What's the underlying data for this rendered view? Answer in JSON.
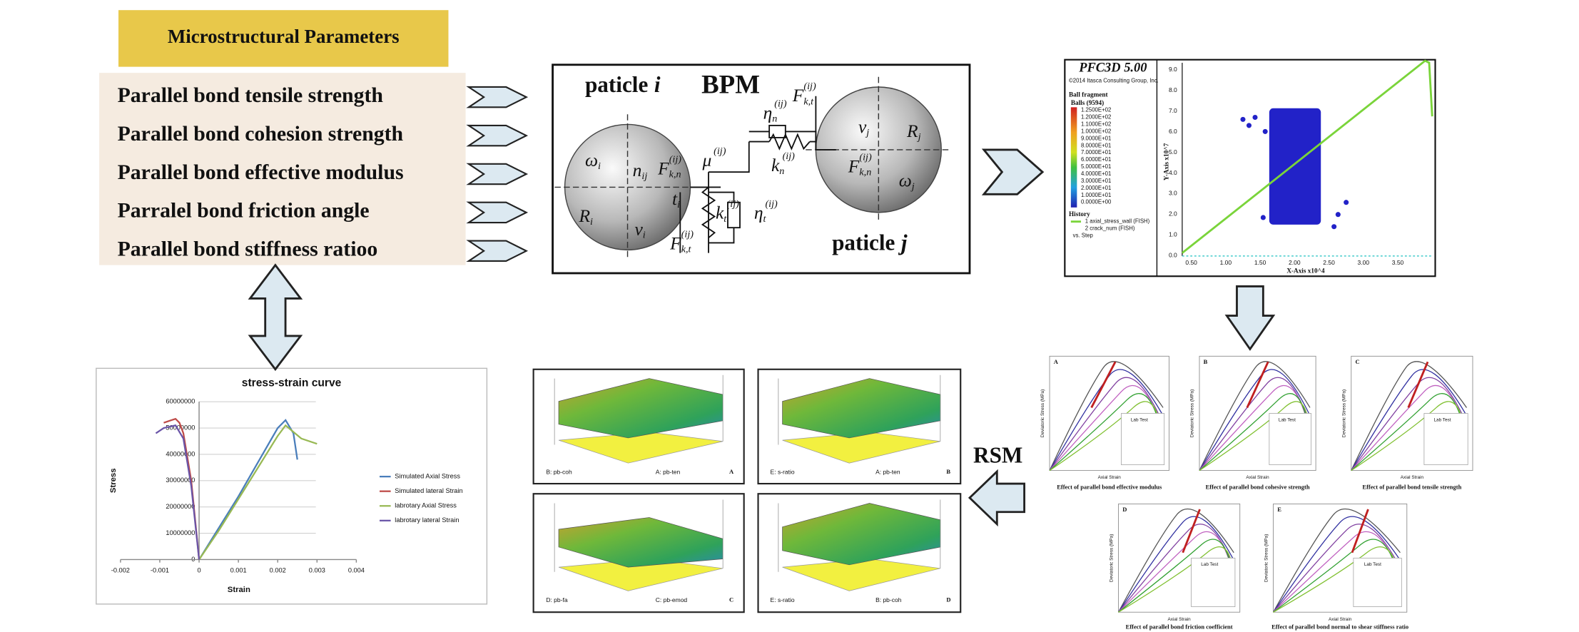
{
  "header": {
    "title": "Microstructural Parameters"
  },
  "parameters": [
    "Parallel bond tensile strength",
    "Parallel bond cohesion strength",
    "Parallel bond effective modulus",
    "Parralel bond friction angle",
    "Parallel bond stiffness ratioo"
  ],
  "bpm": {
    "title": "BPM",
    "particle_i": {
      "label": "paticle",
      "index": "i"
    },
    "particle_j": {
      "label": "paticle",
      "index": "j"
    },
    "symbols": [
      {
        "base": "ω",
        "sub": "i"
      },
      {
        "base": "n",
        "sub": "ij"
      },
      {
        "base": "F",
        "sub": "k,n",
        "sup": "(ij)"
      },
      {
        "base": "t",
        "sub": "i"
      },
      {
        "base": "R",
        "sub": "i"
      },
      {
        "base": "v",
        "sub": "i"
      },
      {
        "base": "F",
        "sub": "k,t",
        "sup": "(ij)"
      },
      {
        "base": "μ",
        "sup": "(ij)"
      },
      {
        "base": "k",
        "sub": "t",
        "sup": "(ij)"
      },
      {
        "base": "η",
        "sub": "t",
        "sup": "(ij)"
      },
      {
        "base": "η",
        "sub": "n",
        "sup": "(ij)"
      },
      {
        "base": "k",
        "sub": "n",
        "sup": "(ij)"
      },
      {
        "base": "F",
        "sub": "k,t",
        "sup": "(ij)"
      },
      {
        "base": "v",
        "sub": "j"
      },
      {
        "base": "R",
        "sub": "j"
      },
      {
        "base": "F",
        "sub": "k,n",
        "sup": "(ij)"
      },
      {
        "base": "ω",
        "sub": "j"
      }
    ]
  },
  "pfc": {
    "title": "PFC3D 5.00",
    "copyright": "©2014 Itasca Consulting Group, Inc.",
    "legend_title": "Ball fragment",
    "legend_subtitle": "Balls (9594)",
    "legend_values": [
      "1.2500E+02",
      "1.2000E+02",
      "1.1000E+02",
      "1.0000E+02",
      "9.0000E+01",
      "8.0000E+01",
      "7.0000E+01",
      "6.0000E+01",
      "5.0000E+01",
      "4.0000E+01",
      "3.0000E+01",
      "2.0000E+01",
      "1.0000E+01",
      "0.0000E+00"
    ],
    "history_title": "History",
    "history": [
      "1 axial_stress_wall (FISH)",
      "2 crack_num (FISH)",
      "vs. Step"
    ],
    "y_label": "Y-Axis x10^7",
    "x_label": "X-Axis x10^4",
    "yticks": [
      "9.0",
      "8.0",
      "7.0",
      "6.0",
      "5.0",
      "4.0",
      "3.0",
      "2.0",
      "1.0",
      "0.0"
    ],
    "xticks": [
      "0.50",
      "1.00",
      "1.50",
      "2.00",
      "2.50",
      "3.00",
      "3.50"
    ]
  },
  "sensitivity": {
    "y_label": "Deviatoric Stress (MPa)",
    "x_label": "Axial Strain",
    "legend_first": "Lab Test",
    "panels": [
      {
        "letter": "A",
        "caption": "Effect of parallel bond effective modulus"
      },
      {
        "letter": "B",
        "caption": "Effect of parallel bond cohesive strength"
      },
      {
        "letter": "C",
        "caption": "Effect of parallel bond tensile strength"
      },
      {
        "letter": "D",
        "caption": "Effect of parallel bond friction coefficient"
      },
      {
        "letter": "E",
        "caption": "Effect of parallel bond normal to shear stiffness ratio"
      }
    ]
  },
  "rsm": {
    "label": "RSM",
    "panels": [
      {
        "letter": "A",
        "x_factor": "A: pb-ten",
        "y_factor": "B: pb-coh"
      },
      {
        "letter": "B",
        "x_factor": "A: pb-ten",
        "y_factor": "E: s-ratio"
      },
      {
        "letter": "C",
        "x_factor": "C: pb-emod",
        "y_factor": "D: pb-fa"
      },
      {
        "letter": "D",
        "x_factor": "B: pb-coh",
        "y_factor": "E: s-ratio"
      }
    ]
  },
  "stress_strain": {
    "type": "line",
    "title": "stress-strain curve",
    "x_label": "Strain",
    "y_label": "Stress",
    "xlim": [
      -0.002,
      0.004
    ],
    "xticks": [
      -0.002,
      -0.001,
      0,
      0.001,
      0.002,
      0.003,
      0.004
    ],
    "ylim": [
      0,
      60000000
    ],
    "yticks": [
      0,
      10000000,
      20000000,
      30000000,
      40000000,
      50000000,
      60000000
    ],
    "grid": true,
    "series": [
      {
        "name": "Simulated Axial Stress",
        "color": "#4a7ebb",
        "x": [
          0,
          0.0005,
          0.001,
          0.0015,
          0.002,
          0.0022,
          0.0024,
          0.0025
        ],
        "values": [
          0,
          12000000,
          24000000,
          37000000,
          50000000,
          53000000,
          48000000,
          38000000
        ]
      },
      {
        "name": "Simulated lateral Strain",
        "color": "#be4b48",
        "x": [
          0,
          -0.0002,
          -0.0004,
          -0.0005,
          -0.0006,
          -0.0007,
          -0.0009
        ],
        "values": [
          0,
          30000000,
          48000000,
          52000000,
          53500000,
          53000000,
          52000000
        ]
      },
      {
        "name": "labrotary Axial Stress",
        "color": "#98b954",
        "x": [
          0,
          0.0005,
          0.001,
          0.0015,
          0.002,
          0.0022,
          0.0026,
          0.003
        ],
        "values": [
          0,
          11000000,
          23000000,
          35000000,
          47000000,
          51000000,
          46000000,
          44000000
        ]
      },
      {
        "name": "labrotary lateral Strain",
        "color": "#6a55a8",
        "x": [
          0,
          -0.0002,
          -0.0004,
          -0.0006,
          -0.0009,
          -0.0011
        ],
        "values": [
          0,
          28000000,
          46000000,
          51000000,
          50000000,
          48000000
        ]
      }
    ]
  }
}
